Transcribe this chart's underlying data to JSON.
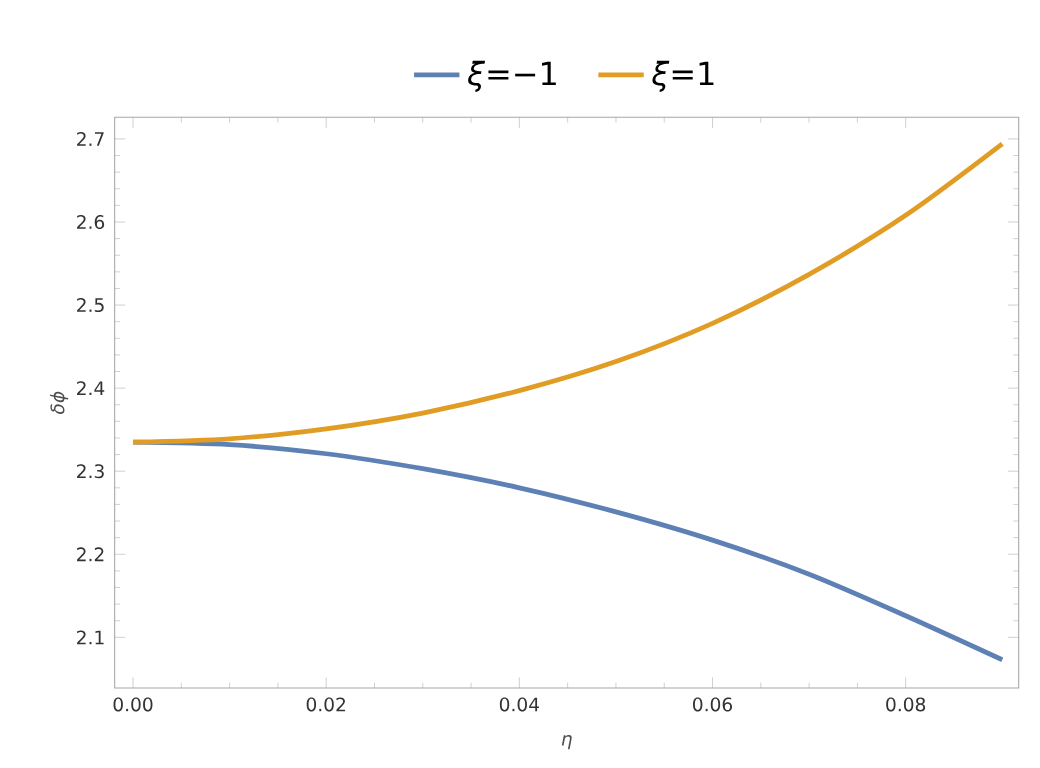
{
  "chart_data": {
    "type": "line",
    "xlabel": "*η*",
    "ylabel": "*δϕ*",
    "x": [
      0,
      0.01,
      0.02,
      0.03,
      0.04,
      0.05,
      0.06,
      0.07,
      0.08,
      0.09
    ],
    "series": [
      {
        "name": "*ξ*=−1",
        "color": "#5e81b5",
        "values": [
          2.335,
          2.332,
          2.321,
          2.303,
          2.28,
          2.251,
          2.217,
          2.176,
          2.126,
          2.073
        ]
      },
      {
        "name": "*ξ*=1",
        "color": "#e19c24",
        "values": [
          2.335,
          2.339,
          2.351,
          2.37,
          2.397,
          2.432,
          2.478,
          2.537,
          2.608,
          2.694
        ]
      }
    ],
    "xlim": [
      -0.0019,
      0.0917
    ],
    "ylim": [
      2.039,
      2.726
    ],
    "xticks": [
      {
        "value": 0,
        "label": "0.00"
      },
      {
        "value": 0.02,
        "label": "0.02"
      },
      {
        "value": 0.04,
        "label": "0.04"
      },
      {
        "value": 0.06,
        "label": "0.06"
      },
      {
        "value": 0.08,
        "label": "0.08"
      }
    ],
    "yticks": [
      2.1,
      2.2,
      2.3,
      2.4,
      2.5,
      2.6,
      2.7
    ],
    "legend": "top",
    "grid": false,
    "marker": "none",
    "line_style": "solid"
  }
}
